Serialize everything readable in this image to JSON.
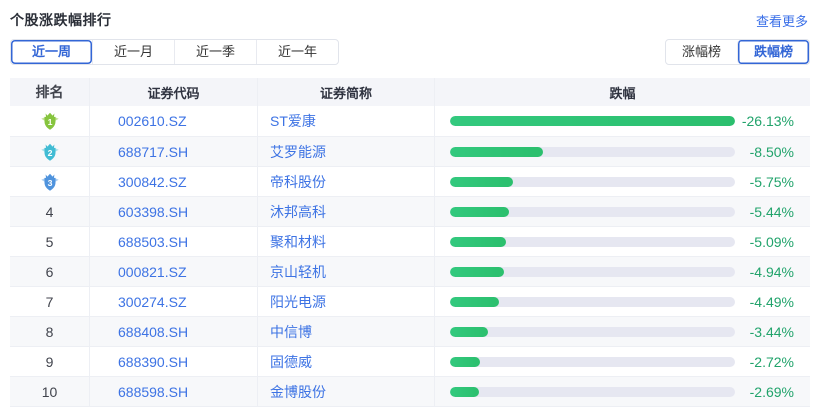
{
  "header": {
    "title": "个股涨跌幅排行",
    "more_link": "查看更多"
  },
  "period_tabs": [
    {
      "label": "近一周",
      "active": true
    },
    {
      "label": "近一月",
      "active": false
    },
    {
      "label": "近一季",
      "active": false
    },
    {
      "label": "近一年",
      "active": false
    }
  ],
  "board_toggle": [
    {
      "label": "涨幅榜",
      "active": false
    },
    {
      "label": "跌幅榜",
      "active": true
    }
  ],
  "table": {
    "columns": [
      "排名",
      "证券代码",
      "证券简称",
      "跌幅"
    ],
    "max_abs_change": 26.13,
    "rows": [
      {
        "rank": 1,
        "code": "002610.SZ",
        "name": "ST爱康",
        "change": "-26.13%",
        "value": 26.13
      },
      {
        "rank": 2,
        "code": "688717.SH",
        "name": "艾罗能源",
        "change": "-8.50%",
        "value": 8.5
      },
      {
        "rank": 3,
        "code": "300842.SZ",
        "name": "帝科股份",
        "change": "-5.75%",
        "value": 5.75
      },
      {
        "rank": 4,
        "code": "603398.SH",
        "name": "沐邦高科",
        "change": "-5.44%",
        "value": 5.44
      },
      {
        "rank": 5,
        "code": "688503.SH",
        "name": "聚和材料",
        "change": "-5.09%",
        "value": 5.09
      },
      {
        "rank": 6,
        "code": "000821.SZ",
        "name": "京山轻机",
        "change": "-4.94%",
        "value": 4.94
      },
      {
        "rank": 7,
        "code": "300274.SZ",
        "name": "阳光电源",
        "change": "-4.49%",
        "value": 4.49
      },
      {
        "rank": 8,
        "code": "688408.SH",
        "name": "中信博",
        "change": "-3.44%",
        "value": 3.44
      },
      {
        "rank": 9,
        "code": "688390.SH",
        "name": "固德威",
        "change": "-2.72%",
        "value": 2.72
      },
      {
        "rank": 10,
        "code": "688598.SH",
        "name": "金博股份",
        "change": "-2.69%",
        "value": 2.69
      }
    ]
  },
  "colors": {
    "accent_blue": "#3366d6",
    "link_blue": "#3a6fe8",
    "bar_green": "#2ec573",
    "pct_green": "#21a36b",
    "bar_track": "#e6e7f1",
    "medal_1": "#86c43e",
    "medal_1_wing": "#c3e197",
    "medal_2": "#41bcd4",
    "medal_2_wing": "#a8e0ea",
    "medal_3": "#4f93dd",
    "medal_3_wing": "#abcef0"
  }
}
